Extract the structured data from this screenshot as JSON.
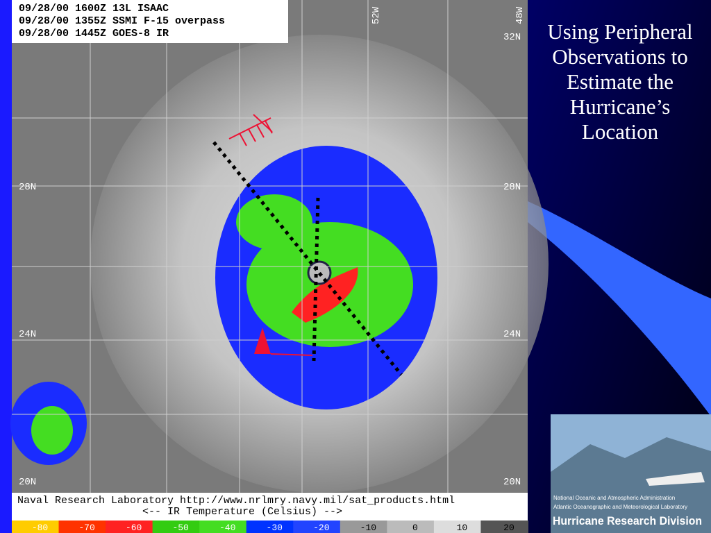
{
  "image_header": {
    "lines": [
      "09/28/00 1600Z  13L ISAAC",
      "09/28/00 1355Z  SSMI F-15 overpass",
      "09/28/00 1445Z  GOES-8 IR"
    ]
  },
  "longitude_labels": [
    "52W",
    "48W"
  ],
  "latitude_labels": {
    "left": [
      "28N",
      "24N",
      "20N"
    ],
    "right": [
      "32N",
      "28N",
      "24N",
      "20N"
    ]
  },
  "image_footer": {
    "source": "Naval Research Laboratory  http://www.nrlmry.navy.mil/sat_products.html",
    "scale_caption": "<--   IR Temperature (Celsius)   -->",
    "scale_labels": [
      "-80",
      "-70",
      "-60",
      "-50",
      "-40",
      "-30",
      "-20",
      "-10",
      "0",
      "10",
      "20"
    ]
  },
  "slide": {
    "title": "Using Peripheral Observations to Estimate the Hurricane’s Location"
  },
  "logo": {
    "lines": [
      "National Oceanic and Atmospheric Administration",
      "Atlantic Oceanographic and Meteorological Laboratory",
      "Hurricane Research Division"
    ]
  }
}
